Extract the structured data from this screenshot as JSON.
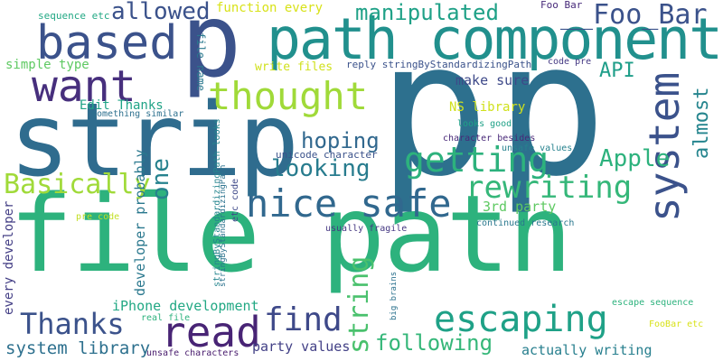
{
  "words": [
    {
      "text": "file path",
      "color": "#2db27d"
    },
    {
      "text": "p",
      "color": "#2d708e"
    },
    {
      "text": "p",
      "color": "#2d708e"
    },
    {
      "text": "strip",
      "color": "#2f6c8e"
    },
    {
      "text": "p",
      "color": "#3b528b"
    },
    {
      "text": "path component",
      "color": "#21908d"
    },
    {
      "text": "based",
      "color": "#3b528b"
    },
    {
      "text": "want",
      "color": "#472f7d"
    },
    {
      "text": "allowed",
      "color": "#3b528b"
    },
    {
      "text": "manipulated",
      "color": "#1fa187"
    },
    {
      "text": "__Foo_Bar",
      "color": "#3b528b"
    },
    {
      "text": "thought",
      "color": "#a0da39"
    },
    {
      "text": "API",
      "color": "#1f9e89"
    },
    {
      "text": "system",
      "color": "#3b528b"
    },
    {
      "text": "almost",
      "color": "#25858e"
    },
    {
      "text": "one",
      "color": "#26828e"
    },
    {
      "text": "nice safe",
      "color": "#31688e"
    },
    {
      "text": "getting",
      "color": "#2db27d"
    },
    {
      "text": "rewriting",
      "color": "#35b779"
    },
    {
      "text": "looking",
      "color": "#287c8e"
    },
    {
      "text": "hoping",
      "color": "#31688e"
    },
    {
      "text": "Apple",
      "color": "#2db27d"
    },
    {
      "text": "Basically",
      "color": "#a0da39"
    },
    {
      "text": "string",
      "color": "#4ac16d"
    },
    {
      "text": "escaping",
      "color": "#1fa187"
    },
    {
      "text": "find",
      "color": "#3e4989"
    },
    {
      "text": "read",
      "color": "#482475"
    },
    {
      "text": "Thanks",
      "color": "#3b528b"
    },
    {
      "text": "following",
      "color": "#35b779"
    },
    {
      "text": "system library",
      "color": "#2d708e"
    },
    {
      "text": "party values",
      "color": "#424086"
    },
    {
      "text": "actually writing",
      "color": "#277f8e"
    },
    {
      "text": "iPhone development",
      "color": "#22a884"
    },
    {
      "text": "every developer",
      "color": "#433e85"
    },
    {
      "text": "developer probably",
      "color": "#2a788e"
    },
    {
      "text": "3rd party",
      "color": "#5ec962"
    },
    {
      "text": "NS library",
      "color": "#d0e11c"
    },
    {
      "text": "make sure",
      "color": "#3e4989"
    },
    {
      "text": "function every",
      "color": "#d8e219"
    },
    {
      "text": "sequence etc",
      "color": "#22a884"
    },
    {
      "text": "Foo Bar",
      "color": "#472a7a"
    },
    {
      "text": "file name",
      "color": "#2a788e"
    },
    {
      "text": "simple type",
      "color": "#5ec962"
    },
    {
      "text": "write files",
      "color": "#d0e11c"
    },
    {
      "text": "reply stringByStandardizingPath",
      "color": "#3b528b"
    },
    {
      "text": "code pre",
      "color": "#443983"
    },
    {
      "text": "Edit Thanks",
      "color": "#20a386"
    },
    {
      "text": "something similar",
      "color": "#2d708e"
    },
    {
      "text": "stringByStandardizingPath looks",
      "color": "#25858e"
    },
    {
      "text": "looks good",
      "color": "#1fa187"
    },
    {
      "text": "character besides",
      "color": "#482878"
    },
    {
      "text": "unicode character",
      "color": "#3b528b"
    },
    {
      "text": "unsafe values",
      "color": "#26828e"
    },
    {
      "text": "etc code",
      "color": "#3e4989"
    },
    {
      "text": "pre code",
      "color": "#c2df23"
    },
    {
      "text": "usually fragile",
      "color": "#453882"
    },
    {
      "text": "continued research",
      "color": "#2a788e"
    },
    {
      "text": "stringByStandardizingPath",
      "color": "#2c728e"
    },
    {
      "text": "real file",
      "color": "#2db27d"
    },
    {
      "text": "unsafe characters",
      "color": "#481b6d"
    },
    {
      "text": "big brains",
      "color": "#2c728e"
    },
    {
      "text": "escape sequence",
      "color": "#2db27d"
    },
    {
      "text": "FooBar etc",
      "color": "#d8e219"
    }
  ]
}
